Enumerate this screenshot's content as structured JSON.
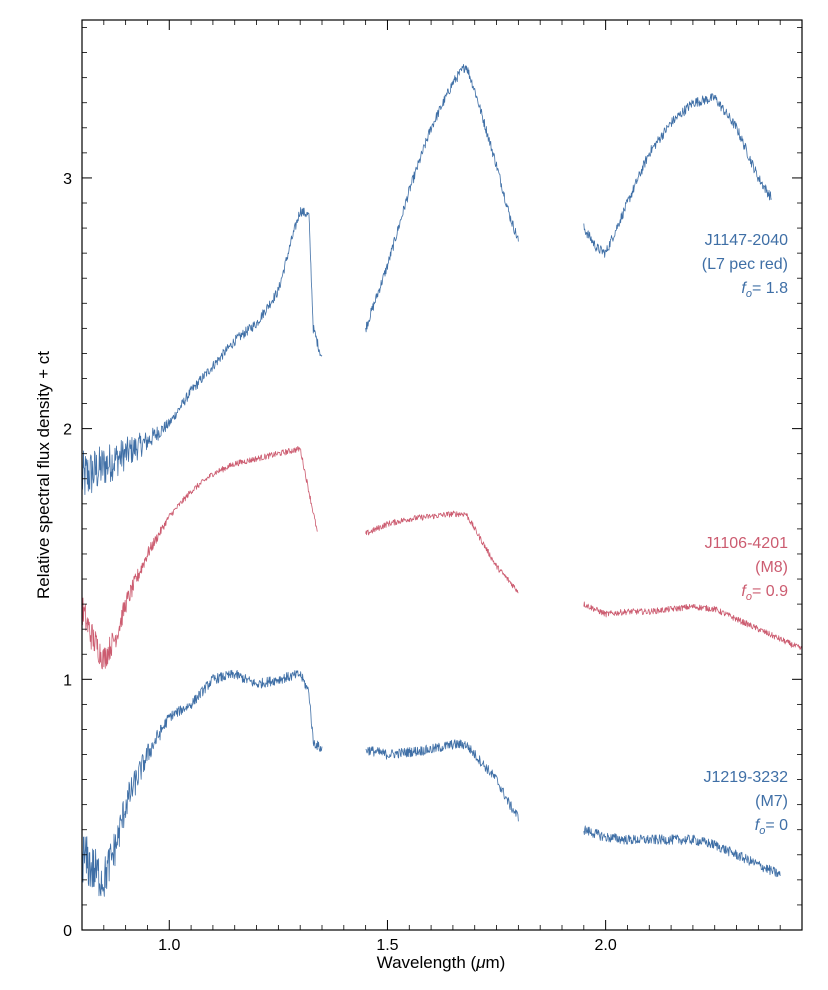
{
  "chart_data": {
    "type": "line",
    "title": "",
    "xlabel": "Wavelength (μm)",
    "xlabel_prefix": "Wavelength (",
    "xlabel_unit": "μ",
    "xlabel_suffix": "m)",
    "ylabel": "Relative spectral flux density + ct",
    "xlim": [
      0.8,
      2.45
    ],
    "ylim": [
      0,
      3.63
    ],
    "xticks": [
      1.0,
      1.5,
      2.0
    ],
    "xtick_labels": [
      "1.0",
      "1.5",
      "2.0"
    ],
    "yticks": [
      0,
      1,
      2,
      3
    ],
    "ytick_labels": [
      "0",
      "1",
      "2",
      "3"
    ],
    "grid": false,
    "series": [
      {
        "name": "J1147-2040",
        "subtype": "(L7 pec red)",
        "f0_label": "f",
        "f0_sub": "o",
        "f0_text": "= 1.8",
        "color": "#3f6fa6",
        "noise": 0.02,
        "segments": [
          {
            "x": [
              0.8,
              0.85,
              0.9,
              0.95,
              1.0,
              1.05,
              1.1,
              1.15,
              1.2,
              1.25,
              1.28,
              1.3,
              1.32,
              1.33,
              1.35
            ],
            "y": [
              1.8,
              1.85,
              1.9,
              1.95,
              2.02,
              2.15,
              2.25,
              2.35,
              2.42,
              2.55,
              2.75,
              2.87,
              2.85,
              2.4,
              2.28
            ]
          },
          {
            "x": [
              1.45,
              1.5,
              1.55,
              1.6,
              1.65,
              1.68,
              1.7,
              1.75,
              1.78,
              1.8
            ],
            "y": [
              2.4,
              2.65,
              2.95,
              3.2,
              3.38,
              3.45,
              3.35,
              3.05,
              2.85,
              2.75
            ]
          },
          {
            "x": [
              1.95,
              1.98,
              2.0,
              2.05,
              2.1,
              2.15,
              2.2,
              2.25,
              2.3,
              2.35,
              2.38
            ],
            "y": [
              2.8,
              2.72,
              2.7,
              2.9,
              3.1,
              3.22,
              3.3,
              3.32,
              3.2,
              3.0,
              2.92
            ]
          }
        ]
      },
      {
        "name": "J1106-4201",
        "subtype": "(M8)",
        "f0_label": "f",
        "f0_sub": "o",
        "f0_text": "= 0.9",
        "color": "#cc5c70",
        "noise": 0.012,
        "segments": [
          {
            "x": [
              0.8,
              0.82,
              0.85,
              0.88,
              0.9,
              0.95,
              1.0,
              1.05,
              1.1,
              1.15,
              1.2,
              1.25,
              1.3,
              1.32,
              1.34
            ],
            "y": [
              1.28,
              1.18,
              1.08,
              1.18,
              1.3,
              1.5,
              1.65,
              1.75,
              1.82,
              1.86,
              1.88,
              1.9,
              1.92,
              1.75,
              1.58
            ]
          },
          {
            "x": [
              1.45,
              1.5,
              1.55,
              1.6,
              1.65,
              1.68,
              1.7,
              1.75,
              1.8
            ],
            "y": [
              1.58,
              1.62,
              1.64,
              1.65,
              1.66,
              1.66,
              1.6,
              1.45,
              1.35
            ]
          },
          {
            "x": [
              1.95,
              2.0,
              2.05,
              2.1,
              2.15,
              2.2,
              2.25,
              2.3,
              2.35,
              2.4,
              2.45
            ],
            "y": [
              1.3,
              1.26,
              1.27,
              1.27,
              1.28,
              1.29,
              1.28,
              1.24,
              1.2,
              1.16,
              1.12
            ]
          }
        ]
      },
      {
        "name": "J1219-3232",
        "subtype": "(M7)",
        "f0_label": "f",
        "f0_sub": "o",
        "f0_text": "= 0",
        "color": "#3f6fa6",
        "noise": 0.02,
        "segments": [
          {
            "x": [
              0.8,
              0.82,
              0.85,
              0.88,
              0.9,
              0.95,
              1.0,
              1.05,
              1.1,
              1.15,
              1.2,
              1.25,
              1.3,
              1.32,
              1.33,
              1.35
            ],
            "y": [
              0.3,
              0.25,
              0.2,
              0.35,
              0.5,
              0.7,
              0.85,
              0.9,
              1.0,
              1.02,
              0.98,
              1.0,
              1.02,
              0.95,
              0.75,
              0.72
            ]
          },
          {
            "x": [
              1.45,
              1.5,
              1.55,
              1.6,
              1.65,
              1.68,
              1.7,
              1.75,
              1.78,
              1.8
            ],
            "y": [
              0.72,
              0.7,
              0.71,
              0.72,
              0.74,
              0.74,
              0.7,
              0.6,
              0.5,
              0.45
            ]
          },
          {
            "x": [
              1.95,
              2.0,
              2.05,
              2.1,
              2.15,
              2.2,
              2.25,
              2.3,
              2.35,
              2.4
            ],
            "y": [
              0.4,
              0.37,
              0.36,
              0.36,
              0.36,
              0.36,
              0.34,
              0.3,
              0.26,
              0.22
            ]
          }
        ]
      }
    ]
  }
}
